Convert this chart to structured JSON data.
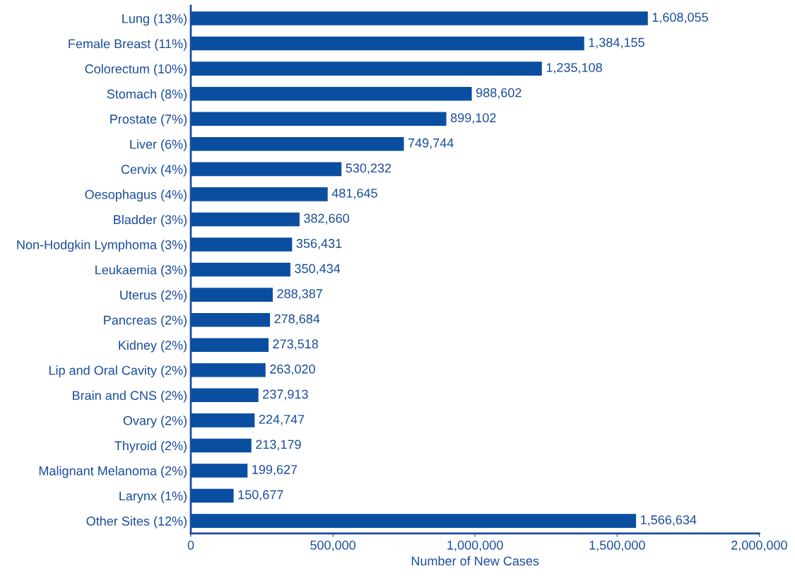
{
  "chart_data": {
    "type": "bar",
    "orientation": "horizontal",
    "categories": [
      "Lung (13%)",
      "Female Breast (11%)",
      "Colorectum (10%)",
      "Stomach (8%)",
      "Prostate (7%)",
      "Liver (6%)",
      "Cervix (4%)",
      "Oesophagus (4%)",
      "Bladder (3%)",
      "Non-Hodgkin Lymphoma (3%)",
      "Leukaemia (3%)",
      "Uterus (2%)",
      "Pancreas (2%)",
      "Kidney (2%)",
      "Lip and Oral Cavity (2%)",
      "Brain and CNS (2%)",
      "Ovary (2%)",
      "Thyroid (2%)",
      "Malignant Melanoma (2%)",
      "Larynx (1%)",
      "Other Sites (12%)"
    ],
    "values": [
      1608055,
      1384155,
      1235108,
      988602,
      899102,
      749744,
      530232,
      481645,
      382660,
      356431,
      350434,
      288387,
      278684,
      273518,
      263020,
      237913,
      224747,
      213179,
      199627,
      150677,
      1566634
    ],
    "value_labels": [
      "1,608,055",
      "1,384,155",
      "1,235,108",
      "988,602",
      "899,102",
      "749,744",
      "530,232",
      "481,645",
      "382,660",
      "356,431",
      "350,434",
      "288,387",
      "278,684",
      "273,518",
      "263,020",
      "237,913",
      "224,747",
      "213,179",
      "199,627",
      "150,677",
      "1,566,634"
    ],
    "color": "#0a4ea2",
    "xlabel": "Number of New Cases",
    "xlim": [
      0,
      2000000
    ],
    "xticks": [
      0,
      {
        "value": 500000,
        "label": "500,000"
      },
      {
        "value": 1000000,
        "label": "1,000,000"
      },
      {
        "value": 1500000,
        "label": "1,500,000"
      },
      {
        "value": 2000000,
        "label": "2,000,000"
      }
    ],
    "grid": false,
    "legend": false
  }
}
